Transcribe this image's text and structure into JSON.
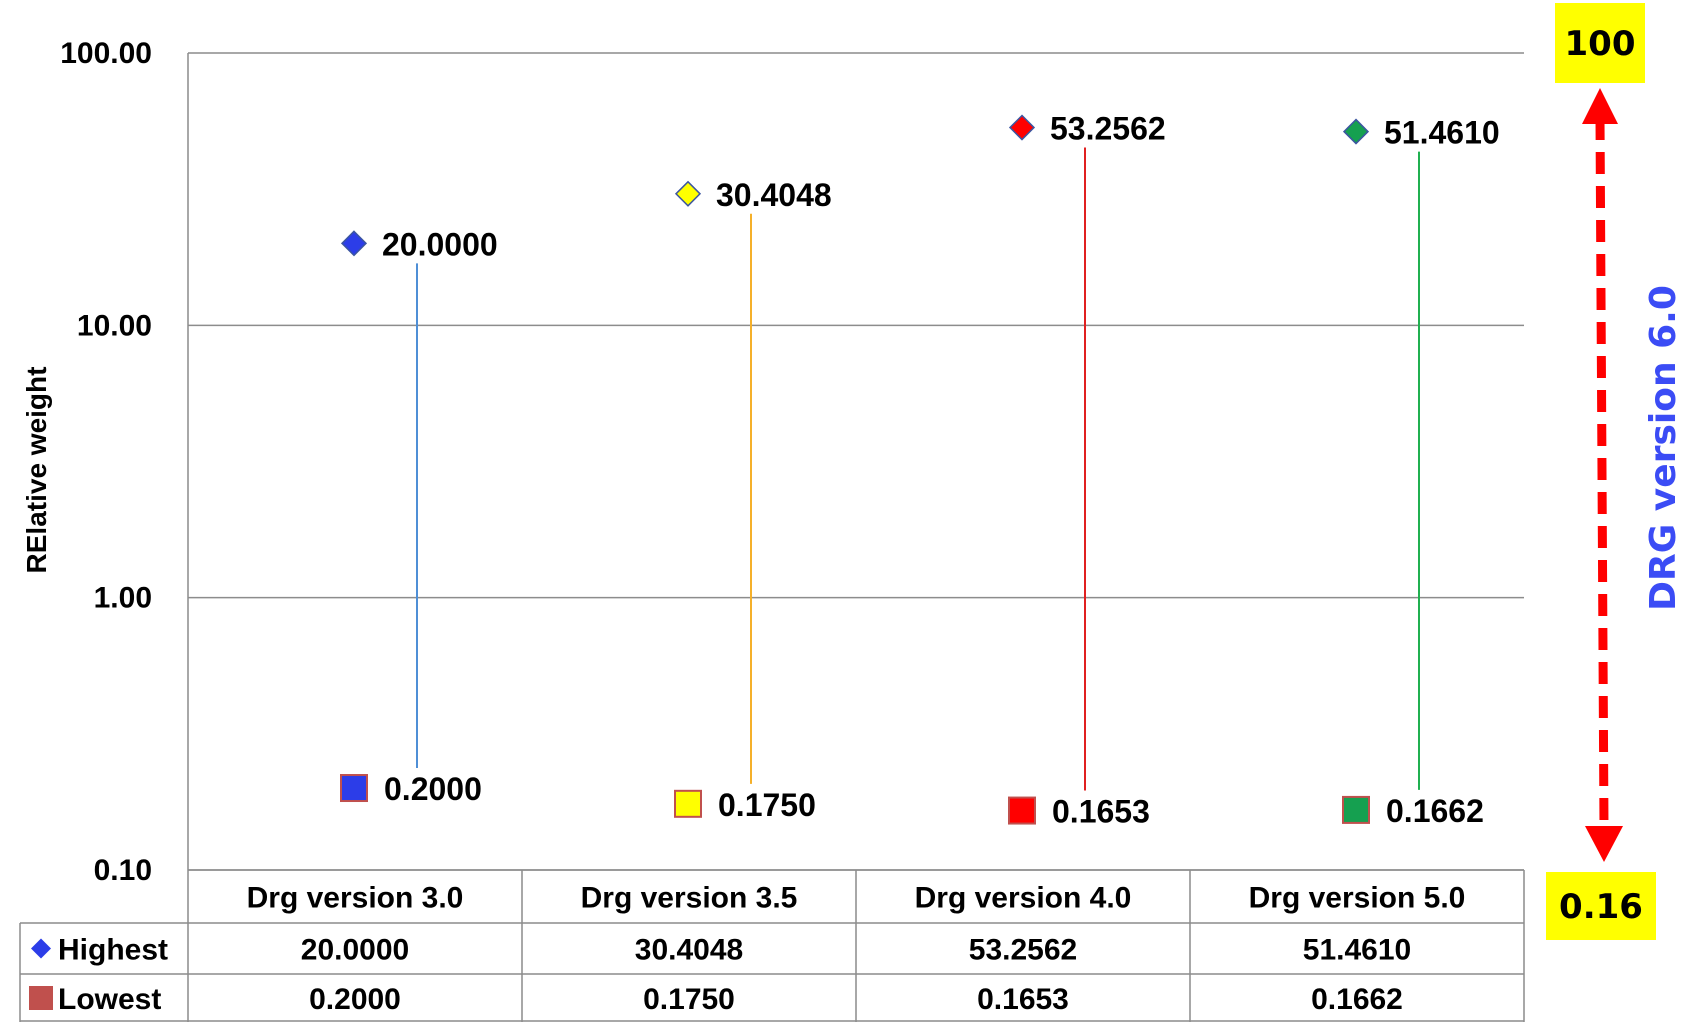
{
  "chart_data": {
    "type": "scatter",
    "ylabel": "RElative weight",
    "y_scale": "log",
    "ylim": [
      0.1,
      100
    ],
    "y_ticks": [
      "100.00",
      "10.00",
      "1.00",
      "0.10"
    ],
    "grid": true,
    "categories": [
      "Drg version 3.0",
      "Drg version 3.5",
      "Drg version 4.0",
      "Drg version 5.0"
    ],
    "series": [
      {
        "name": "Highest",
        "marker": "diamond",
        "values": [
          20.0,
          30.4048,
          53.2562,
          51.461
        ],
        "labels": [
          "20.0000",
          "30.4048",
          "53.2562",
          "51.4610"
        ]
      },
      {
        "name": "Lowest",
        "marker": "square",
        "values": [
          0.2,
          0.175,
          0.1653,
          0.1662
        ],
        "labels": [
          "0.2000",
          "0.1750",
          "0.1653",
          "0.1662"
        ]
      }
    ],
    "category_colors": [
      "#2c3de8",
      "#ffff00",
      "#ff0000",
      "#15a050"
    ],
    "stem_colors": [
      "#4f8fd6",
      "#f5b02a",
      "#e02020",
      "#20b050"
    ],
    "legend_colors": {
      "Highest": "#2c3de8",
      "Lowest": "#c0504d"
    },
    "annotation": {
      "top_label": "100",
      "bottom_label": "0.16",
      "side_label": "DRG version 6.0",
      "side_label_color": "#3b4cf5",
      "arrow_color": "#ff0000",
      "box_color": "#ffff00"
    }
  }
}
